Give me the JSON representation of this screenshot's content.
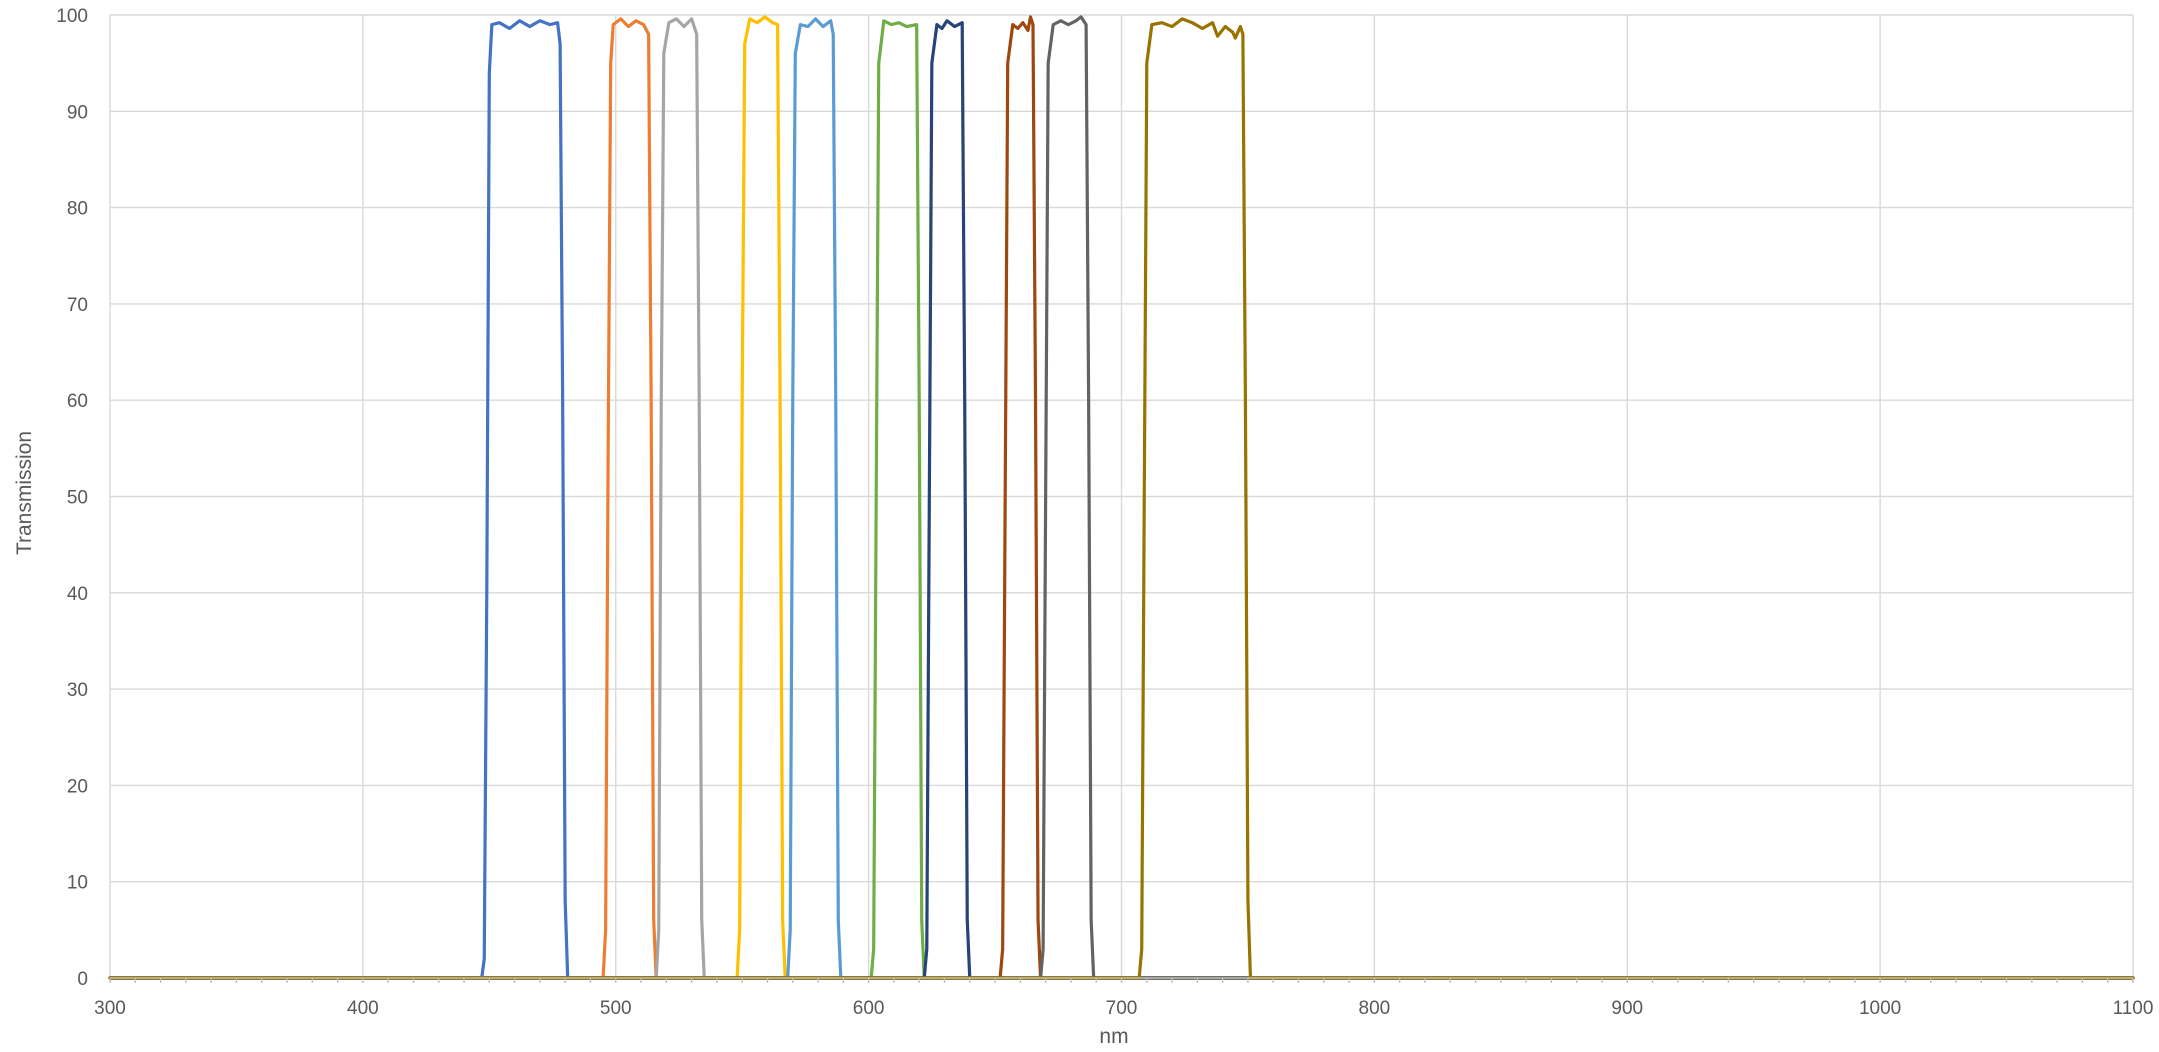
{
  "chart_data": {
    "type": "line",
    "title": "",
    "xlabel": "nm",
    "ylabel": "Transmission",
    "xlim": [
      300,
      1100
    ],
    "ylim": [
      0,
      100
    ],
    "x_ticks": [
      300,
      400,
      500,
      600,
      700,
      800,
      900,
      1000,
      1100
    ],
    "y_ticks": [
      0,
      10,
      20,
      30,
      40,
      50,
      60,
      70,
      80,
      90,
      100
    ],
    "grid": true,
    "legend": "none",
    "series": [
      {
        "color": "#4472c4",
        "points": [
          [
            300,
            0
          ],
          [
            447,
            0
          ],
          [
            448,
            2
          ],
          [
            449,
            40
          ],
          [
            450,
            94
          ],
          [
            451,
            99
          ],
          [
            454,
            99.2
          ],
          [
            458,
            98.6
          ],
          [
            462,
            99.4
          ],
          [
            466,
            98.8
          ],
          [
            470,
            99.4
          ],
          [
            474,
            99
          ],
          [
            477,
            99.2
          ],
          [
            478,
            97
          ],
          [
            479,
            60
          ],
          [
            480,
            8
          ],
          [
            481,
            0
          ],
          [
            1100,
            0
          ]
        ]
      },
      {
        "color": "#ed7d31",
        "points": [
          [
            300,
            0
          ],
          [
            495,
            0
          ],
          [
            496,
            5
          ],
          [
            497,
            55
          ],
          [
            498,
            95
          ],
          [
            499,
            99
          ],
          [
            502,
            99.6
          ],
          [
            505,
            98.8
          ],
          [
            508,
            99.4
          ],
          [
            511,
            99
          ],
          [
            513,
            98
          ],
          [
            514,
            60
          ],
          [
            515,
            6
          ],
          [
            516,
            0
          ],
          [
            1100,
            0
          ]
        ]
      },
      {
        "color": "#a5a5a5",
        "points": [
          [
            300,
            0
          ],
          [
            516,
            0
          ],
          [
            517,
            5
          ],
          [
            518,
            60
          ],
          [
            519,
            96
          ],
          [
            521,
            99.2
          ],
          [
            524,
            99.6
          ],
          [
            527,
            98.8
          ],
          [
            530,
            99.6
          ],
          [
            532,
            98
          ],
          [
            533,
            60
          ],
          [
            534,
            6
          ],
          [
            535,
            0
          ],
          [
            1100,
            0
          ]
        ]
      },
      {
        "color": "#ffc000",
        "points": [
          [
            300,
            0
          ],
          [
            548,
            0
          ],
          [
            549,
            5
          ],
          [
            550,
            60
          ],
          [
            551,
            97
          ],
          [
            553,
            99.6
          ],
          [
            556,
            99.2
          ],
          [
            559,
            99.8
          ],
          [
            562,
            99.2
          ],
          [
            564,
            99
          ],
          [
            565,
            60
          ],
          [
            566,
            6
          ],
          [
            567,
            0
          ],
          [
            1100,
            0
          ]
        ]
      },
      {
        "color": "#5b9bd5",
        "points": [
          [
            300,
            0
          ],
          [
            568,
            0
          ],
          [
            569,
            5
          ],
          [
            570,
            60
          ],
          [
            571,
            96
          ],
          [
            573,
            99
          ],
          [
            576,
            98.8
          ],
          [
            579,
            99.6
          ],
          [
            582,
            98.8
          ],
          [
            585,
            99.4
          ],
          [
            586,
            98
          ],
          [
            587,
            60
          ],
          [
            588,
            6
          ],
          [
            589,
            0
          ],
          [
            1100,
            0
          ]
        ]
      },
      {
        "color": "#70ad47",
        "points": [
          [
            300,
            0
          ],
          [
            601,
            0
          ],
          [
            602,
            3
          ],
          [
            603,
            50
          ],
          [
            604,
            95
          ],
          [
            606,
            99.4
          ],
          [
            609,
            99
          ],
          [
            612,
            99.2
          ],
          [
            615,
            98.8
          ],
          [
            619,
            99
          ],
          [
            620,
            60
          ],
          [
            621,
            6
          ],
          [
            622,
            0
          ],
          [
            1100,
            0
          ]
        ]
      },
      {
        "color": "#264478",
        "points": [
          [
            300,
            0
          ],
          [
            622,
            0
          ],
          [
            623,
            3
          ],
          [
            624,
            50
          ],
          [
            625,
            95
          ],
          [
            627,
            99
          ],
          [
            629,
            98.6
          ],
          [
            631,
            99.4
          ],
          [
            634,
            98.8
          ],
          [
            637,
            99.2
          ],
          [
            638,
            60
          ],
          [
            639,
            6
          ],
          [
            640,
            0
          ],
          [
            1100,
            0
          ]
        ]
      },
      {
        "color": "#9e480e",
        "points": [
          [
            300,
            0
          ],
          [
            652,
            0
          ],
          [
            653,
            3
          ],
          [
            654,
            50
          ],
          [
            655,
            95
          ],
          [
            657,
            99
          ],
          [
            659,
            98.6
          ],
          [
            661,
            99.2
          ],
          [
            663,
            98.4
          ],
          [
            664,
            99.8
          ],
          [
            665,
            99
          ],
          [
            666,
            60
          ],
          [
            667,
            6
          ],
          [
            668,
            0
          ],
          [
            1100,
            0
          ]
        ]
      },
      {
        "color": "#636363",
        "points": [
          [
            300,
            0
          ],
          [
            668,
            0
          ],
          [
            669,
            3
          ],
          [
            670,
            50
          ],
          [
            671,
            95
          ],
          [
            673,
            99
          ],
          [
            676,
            99.4
          ],
          [
            679,
            99
          ],
          [
            682,
            99.4
          ],
          [
            684,
            99.8
          ],
          [
            686,
            99
          ],
          [
            687,
            60
          ],
          [
            688,
            6
          ],
          [
            689,
            0
          ],
          [
            1100,
            0
          ]
        ]
      },
      {
        "color": "#997300",
        "points": [
          [
            300,
            0
          ],
          [
            707,
            0
          ],
          [
            708,
            3
          ],
          [
            709,
            50
          ],
          [
            710,
            95
          ],
          [
            712,
            99
          ],
          [
            716,
            99.2
          ],
          [
            720,
            98.8
          ],
          [
            724,
            99.6
          ],
          [
            728,
            99.2
          ],
          [
            732,
            98.6
          ],
          [
            736,
            99.2
          ],
          [
            738,
            97.8
          ],
          [
            741,
            98.8
          ],
          [
            744,
            98.2
          ],
          [
            745,
            97.6
          ],
          [
            747,
            98.8
          ],
          [
            748,
            98
          ],
          [
            749,
            60
          ],
          [
            750,
            8
          ],
          [
            751,
            0
          ],
          [
            1100,
            0
          ]
        ]
      }
    ]
  }
}
